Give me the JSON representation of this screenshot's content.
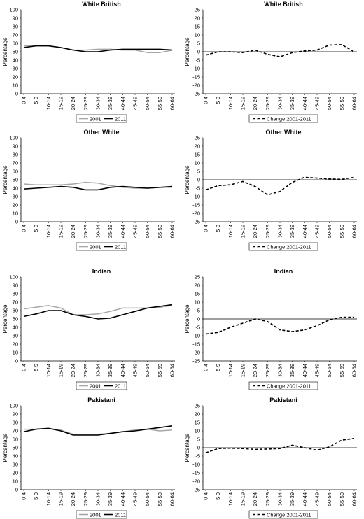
{
  "chart_data": [
    {
      "type": "line",
      "title": "White British",
      "ylabel": "Percentage",
      "ylim": [
        0,
        100
      ],
      "yticks": [
        0,
        10,
        20,
        30,
        40,
        50,
        60,
        70,
        80,
        90,
        100
      ],
      "categories": [
        "0-4",
        "5-9",
        "10-14",
        "15-19",
        "20-24",
        "25-29",
        "30-34",
        "35-39",
        "40-44",
        "45-49",
        "50-54",
        "55-59",
        "60-64"
      ],
      "series": [
        {
          "name": "2001",
          "color": "#a6a6a6",
          "dash": "solid",
          "values": [
            57,
            57,
            57,
            55,
            52,
            52,
            53,
            53,
            52,
            52,
            49,
            49,
            52
          ]
        },
        {
          "name": "2011",
          "color": "#000000",
          "dash": "solid",
          "values": [
            55,
            57,
            57,
            55,
            52,
            50,
            50,
            52,
            53,
            53,
            53,
            53,
            52
          ]
        }
      ],
      "legend": "bottom"
    },
    {
      "type": "line",
      "title": "White British",
      "ylabel": "Percentage",
      "ylim": [
        -25,
        25
      ],
      "yticks": [
        -25,
        -20,
        -15,
        -10,
        -5,
        0,
        5,
        10,
        15,
        20,
        25
      ],
      "zero_line": true,
      "categories": [
        "0-4",
        "5-9",
        "10-14",
        "15-19",
        "20-24",
        "25-29",
        "30-34",
        "35-39",
        "40-44",
        "45-49",
        "50-54",
        "55-59",
        "60-64"
      ],
      "series": [
        {
          "name": "Change 2001-2011",
          "color": "#000000",
          "dash": "dashed",
          "values": [
            -2,
            0,
            0,
            -0.5,
            1,
            -1.5,
            -3,
            -0.5,
            0.5,
            1,
            4,
            4.2,
            0
          ]
        }
      ],
      "legend": "bottom"
    },
    {
      "type": "line",
      "title": "Other White",
      "ylabel": "Percentage",
      "ylim": [
        0,
        100
      ],
      "yticks": [
        0,
        10,
        20,
        30,
        40,
        50,
        60,
        70,
        80,
        90,
        100
      ],
      "categories": [
        "0-4",
        "5-9",
        "10-14",
        "15-19",
        "20-24",
        "25-29",
        "30-34",
        "35-39",
        "40-44",
        "45-49",
        "50-54",
        "55-59",
        "60-64"
      ],
      "series": [
        {
          "name": "2001",
          "color": "#a6a6a6",
          "dash": "solid",
          "values": [
            45,
            44,
            44,
            44,
            45,
            47,
            46,
            43,
            41,
            40,
            40,
            41,
            41
          ]
        },
        {
          "name": "2011",
          "color": "#000000",
          "dash": "solid",
          "values": [
            39,
            40,
            41,
            42,
            41,
            38,
            38,
            41,
            42,
            41,
            40,
            41,
            42
          ]
        }
      ],
      "legend": "bottom"
    },
    {
      "type": "line",
      "title": "Other White",
      "ylabel": "Percentage",
      "ylim": [
        -25,
        25
      ],
      "yticks": [
        -25,
        -20,
        -15,
        -10,
        -5,
        0,
        5,
        10,
        15,
        20,
        25
      ],
      "zero_line": true,
      "categories": [
        "0-4",
        "5-9",
        "10-14",
        "15-19",
        "20-24",
        "25-29",
        "30-34",
        "35-39",
        "40-44",
        "45-49",
        "50-54",
        "55-59",
        "60-64"
      ],
      "series": [
        {
          "name": "Change 2001-2011",
          "color": "#000000",
          "dash": "dashed",
          "values": [
            -6,
            -3.5,
            -3,
            -1,
            -4,
            -9,
            -7,
            -1.5,
            1.5,
            1,
            0.5,
            0.3,
            1.5
          ]
        }
      ],
      "legend": "bottom"
    },
    {
      "type": "line",
      "title": "Indian",
      "ylabel": "Percentage",
      "ylim": [
        0,
        100
      ],
      "yticks": [
        0,
        10,
        20,
        30,
        40,
        50,
        60,
        70,
        80,
        90,
        100
      ],
      "categories": [
        "0-4",
        "5-9",
        "10-14",
        "15-19",
        "20-24",
        "25-29",
        "30-34",
        "35-39",
        "40-44",
        "45-49",
        "50-54",
        "55-59",
        "60-64"
      ],
      "series": [
        {
          "name": "2001",
          "color": "#a6a6a6",
          "dash": "solid",
          "values": [
            62,
            64,
            66,
            63,
            55,
            55,
            56,
            59,
            63,
            63,
            63,
            64,
            66
          ]
        },
        {
          "name": "2011",
          "color": "#000000",
          "dash": "solid",
          "values": [
            53,
            56,
            60,
            60,
            55,
            53,
            50,
            51,
            55,
            59,
            63,
            65,
            67
          ]
        }
      ],
      "legend": "bottom"
    },
    {
      "type": "line",
      "title": "Indian",
      "ylabel": "Percentage",
      "ylim": [
        -25,
        25
      ],
      "yticks": [
        -25,
        -20,
        -15,
        -10,
        -5,
        0,
        5,
        10,
        15,
        20,
        25
      ],
      "zero_line": true,
      "categories": [
        "0-4",
        "5-9",
        "10-14",
        "15-19",
        "20-24",
        "25-29",
        "30-34",
        "35-39",
        "40-44",
        "45-49",
        "50-54",
        "55-59",
        "60-64"
      ],
      "series": [
        {
          "name": "Change 2001-2011",
          "color": "#000000",
          "dash": "dashed",
          "values": [
            -9,
            -8,
            -5,
            -2.5,
            0,
            -1.5,
            -6.5,
            -7.5,
            -6.5,
            -4,
            -0.5,
            1,
            1
          ]
        }
      ],
      "legend": "bottom"
    },
    {
      "type": "line",
      "title": "Pakistani",
      "ylabel": "Percentage",
      "ylim": [
        0,
        100
      ],
      "yticks": [
        0,
        10,
        20,
        30,
        40,
        50,
        60,
        70,
        80,
        90,
        100
      ],
      "categories": [
        "0-4",
        "5-9",
        "10-14",
        "15-19",
        "20-24",
        "25-29",
        "30-34",
        "35-39",
        "40-44",
        "45-49",
        "50-54",
        "55-59",
        "60-64"
      ],
      "series": [
        {
          "name": "2001",
          "color": "#a6a6a6",
          "dash": "solid",
          "values": [
            72,
            72,
            73,
            71,
            66,
            66,
            66,
            67,
            69,
            71,
            72,
            70,
            71
          ]
        },
        {
          "name": "2011",
          "color": "#000000",
          "dash": "solid",
          "values": [
            69,
            72,
            73,
            70,
            65,
            65,
            65,
            67,
            69,
            70,
            72,
            74,
            76
          ]
        }
      ],
      "legend": "bottom"
    },
    {
      "type": "line",
      "title": "Pakistani",
      "ylabel": "Percentage",
      "ylim": [
        -25,
        25
      ],
      "yticks": [
        -25,
        -20,
        -15,
        -10,
        -5,
        0,
        5,
        10,
        15,
        20,
        25
      ],
      "zero_line": true,
      "categories": [
        "0-4",
        "5-9",
        "10-14",
        "15-19",
        "20-24",
        "25-29",
        "30-34",
        "35-39",
        "40-44",
        "45-49",
        "50-54",
        "55-59",
        "60-64"
      ],
      "series": [
        {
          "name": "Change 2001-2011",
          "color": "#000000",
          "dash": "dashed",
          "values": [
            -3,
            -0.5,
            -0.3,
            -0.5,
            -1,
            -0.8,
            -0.5,
            1.5,
            0,
            -1.5,
            0.5,
            4.5,
            5.5
          ]
        }
      ],
      "legend": "bottom"
    }
  ]
}
